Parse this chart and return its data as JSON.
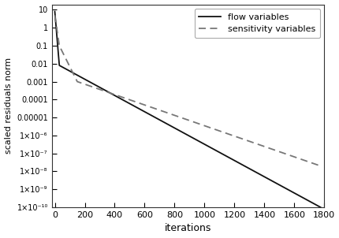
{
  "xlabel": "iterations",
  "ylabel": "scaled residuals norm",
  "xlim": [
    -20,
    1800
  ],
  "legend_labels": [
    "flow variables",
    "sensitivity variables"
  ],
  "flow_color": "#111111",
  "sens_color": "#777777",
  "background_color": "#ffffff",
  "ytick_vals": [
    10,
    1,
    0.1,
    0.01,
    0.001,
    0.0001,
    1e-05,
    1e-06,
    1e-07,
    1e-08,
    1e-09,
    1e-10
  ],
  "ytick_labels": [
    "10",
    "1",
    "0.1",
    "0.01",
    "0.001",
    "0.0001",
    "0.00001",
    "1×10⁻⁶",
    "1×10⁻⁷",
    "1×10⁻⁸",
    "1×10⁻⁹",
    "1×10⁻¹⁰"
  ],
  "flow_phase1_end_x": 30,
  "flow_phase1_start_y": 8,
  "flow_phase1_end_y": 0.008,
  "flow_phase2_end_x": 1775,
  "flow_phase2_end_y": 1e-10,
  "sens_phase1_end_x": 30,
  "sens_phase1_start_y": 5,
  "sens_phase1_end_y": 0.1,
  "sens_phase2_end_x": 150,
  "sens_phase2_end_y": 0.001,
  "sens_phase3_end_x": 1775,
  "sens_phase3_end_y": 2e-08
}
